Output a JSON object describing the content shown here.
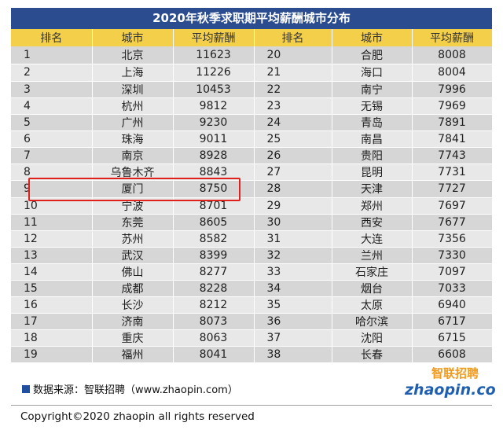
{
  "title": "2020年秋季求职期平均薪酬城市分布",
  "headers": [
    "排名",
    "城市",
    "平均薪酬",
    "排名",
    "城市",
    "平均薪酬"
  ],
  "rows": [
    [
      [
        "1",
        "北京",
        "11623"
      ],
      [
        "20",
        "合肥",
        "8008"
      ]
    ],
    [
      [
        "2",
        "上海",
        "11226"
      ],
      [
        "21",
        "海口",
        "8004"
      ]
    ],
    [
      [
        "3",
        "深圳",
        "10453"
      ],
      [
        "22",
        "南宁",
        "7996"
      ]
    ],
    [
      [
        "4",
        "杭州",
        "9812"
      ],
      [
        "23",
        "无锡",
        "7969"
      ]
    ],
    [
      [
        "5",
        "广州",
        "9230"
      ],
      [
        "24",
        "青岛",
        "7891"
      ]
    ],
    [
      [
        "6",
        "珠海",
        "9011"
      ],
      [
        "25",
        "南昌",
        "7841"
      ]
    ],
    [
      [
        "7",
        "南京",
        "8928"
      ],
      [
        "26",
        "贵阳",
        "7743"
      ]
    ],
    [
      [
        "8",
        "乌鲁木齐",
        "8843"
      ],
      [
        "27",
        "昆明",
        "7731"
      ]
    ],
    [
      [
        "9",
        "厦门",
        "8750"
      ],
      [
        "28",
        "天津",
        "7727"
      ]
    ],
    [
      [
        "10",
        "宁波",
        "8701"
      ],
      [
        "29",
        "郑州",
        "7697"
      ]
    ],
    [
      [
        "11",
        "东莞",
        "8605"
      ],
      [
        "30",
        "西安",
        "7677"
      ]
    ],
    [
      [
        "12",
        "苏州",
        "8582"
      ],
      [
        "31",
        "大连",
        "7356"
      ]
    ],
    [
      [
        "13",
        "武汉",
        "8399"
      ],
      [
        "32",
        "兰州",
        "7330"
      ]
    ],
    [
      [
        "14",
        "佛山",
        "8277"
      ],
      [
        "33",
        "石家庄",
        "7097"
      ]
    ],
    [
      [
        "15",
        "成都",
        "8228"
      ],
      [
        "34",
        "烟台",
        "7033"
      ]
    ],
    [
      [
        "16",
        "长沙",
        "8212"
      ],
      [
        "35",
        "太原",
        "6940"
      ]
    ],
    [
      [
        "17",
        "济南",
        "8073"
      ],
      [
        "36",
        "哈尔滨",
        "6717"
      ]
    ],
    [
      [
        "18",
        "重庆",
        "8063"
      ],
      [
        "37",
        "沈阳",
        "6715"
      ]
    ],
    [
      [
        "19",
        "福州",
        "8041"
      ],
      [
        "38",
        "长春",
        "6608"
      ]
    ]
  ],
  "source_text": "数据来源：智联招聘（www.zhaopin.com）",
  "logo": {
    "cn_text": "智联招聘",
    "en_text": "zhaopin.com"
  },
  "copyright": "Copyright©2020 zhaopin all rights reserved",
  "colors": {
    "title_bg": "#2b4c8f",
    "header_bg": "#f4d04a",
    "highlight": "#e0201a",
    "logo_blue": "#1f5fb0",
    "logo_orange": "#f29a1c"
  }
}
